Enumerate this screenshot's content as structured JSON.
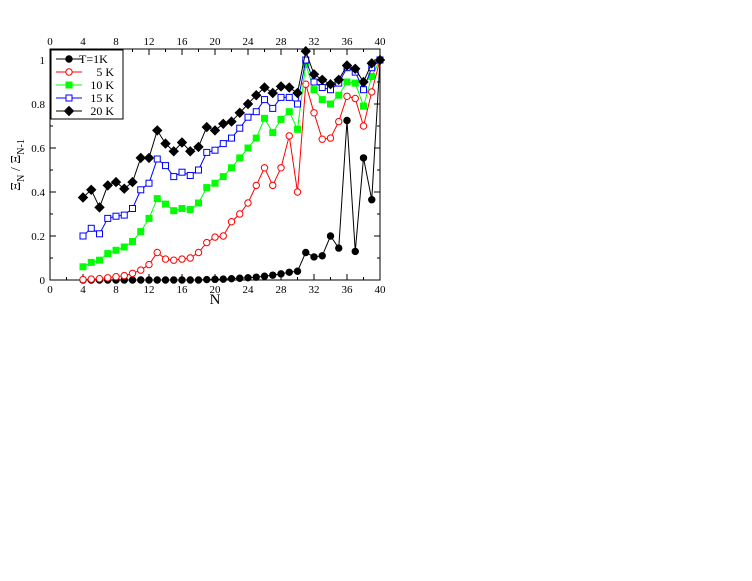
{
  "chart_data": {
    "type": "line",
    "title": "",
    "xlabel": "N",
    "ylabel_main": "Ξ",
    "ylabel_sub_num": "N",
    "ylabel_sep": " / ",
    "ylabel_sub_den": "N-1",
    "xlim": [
      0,
      40
    ],
    "ylim": [
      0,
      1.05
    ],
    "xticks": [
      0,
      4,
      8,
      12,
      16,
      20,
      24,
      28,
      32,
      36,
      40
    ],
    "yticks": [
      0,
      0.2,
      0.4,
      0.6,
      0.8,
      1
    ],
    "ytick_labels": [
      "0",
      "0.2",
      "0.4",
      "0.6",
      "0.8",
      "1"
    ],
    "top_axis_mirrored": true,
    "grid": false,
    "legend_position": "top-left",
    "x": [
      4,
      5,
      6,
      7,
      8,
      9,
      10,
      11,
      12,
      13,
      14,
      15,
      16,
      17,
      18,
      19,
      20,
      21,
      22,
      23,
      24,
      25,
      26,
      27,
      28,
      29,
      30,
      31,
      32,
      33,
      34,
      35,
      36,
      37,
      38,
      39,
      40
    ],
    "series": [
      {
        "name": "T=1K",
        "color": "#000000",
        "marker": "circle-filled",
        "values": [
          0,
          0,
          0,
          0,
          0,
          0,
          0,
          0,
          0,
          0,
          0,
          0,
          0,
          0,
          0,
          0.002,
          0.003,
          0.004,
          0.006,
          0.008,
          0.01,
          0.013,
          0.017,
          0.022,
          0.028,
          0.035,
          0.04,
          0.125,
          0.105,
          0.11,
          0.2,
          0.145,
          0.725,
          0.13,
          0.555,
          0.365,
          1.0
        ]
      },
      {
        "name": "5 K",
        "color": "#ff0000",
        "marker": "circle-open",
        "values": [
          0.002,
          0.004,
          0.006,
          0.01,
          0.015,
          0.02,
          0.03,
          0.045,
          0.07,
          0.125,
          0.095,
          0.09,
          0.095,
          0.1,
          0.125,
          0.17,
          0.195,
          0.2,
          0.265,
          0.3,
          0.35,
          0.43,
          0.51,
          0.43,
          0.51,
          0.655,
          0.4,
          0.89,
          0.76,
          0.64,
          0.645,
          0.72,
          0.835,
          0.825,
          0.7,
          0.855,
          1.0
        ]
      },
      {
        "name": "10 K",
        "color": "#00ff00",
        "marker": "square-filled",
        "values": [
          0.06,
          0.08,
          0.09,
          0.12,
          0.135,
          0.15,
          0.175,
          0.22,
          0.28,
          0.37,
          0.345,
          0.315,
          0.325,
          0.32,
          0.35,
          0.42,
          0.44,
          0.47,
          0.51,
          0.555,
          0.6,
          0.645,
          0.735,
          0.67,
          0.73,
          0.765,
          0.685,
          0.98,
          0.865,
          0.82,
          0.8,
          0.84,
          0.9,
          0.895,
          0.79,
          0.925,
          1.0
        ]
      },
      {
        "name": "15 K",
        "color": "#0000ff",
        "marker": "square-open",
        "values": [
          0.2,
          0.235,
          0.21,
          0.28,
          0.29,
          0.295,
          0.325,
          0.41,
          0.44,
          0.55,
          0.52,
          0.47,
          0.49,
          0.475,
          0.5,
          0.58,
          0.59,
          0.62,
          0.645,
          0.69,
          0.74,
          0.765,
          0.82,
          0.78,
          0.83,
          0.83,
          0.8,
          1.0,
          0.9,
          0.875,
          0.865,
          0.895,
          0.965,
          0.945,
          0.865,
          0.965,
          1.0
        ]
      },
      {
        "name": "20 K",
        "color": "#000000",
        "marker": "diamond-filled",
        "values": [
          0.375,
          0.41,
          0.33,
          0.43,
          0.445,
          0.415,
          0.445,
          0.555,
          0.555,
          0.68,
          0.62,
          0.585,
          0.625,
          0.585,
          0.605,
          0.695,
          0.68,
          0.71,
          0.72,
          0.76,
          0.8,
          0.84,
          0.875,
          0.85,
          0.88,
          0.875,
          0.85,
          1.04,
          0.935,
          0.91,
          0.89,
          0.91,
          0.975,
          0.96,
          0.9,
          0.985,
          1.0
        ]
      }
    ]
  }
}
